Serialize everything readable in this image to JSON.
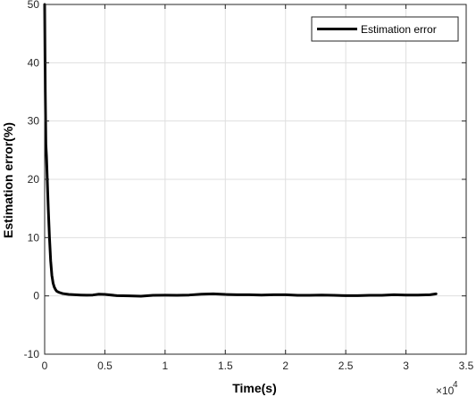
{
  "chart_data": {
    "type": "line",
    "xlabel": "Time(s)",
    "ylabel": "Estimation error(%)",
    "x_multiplier": "×10",
    "x_multiplier_exponent": "4",
    "xlim": [
      0,
      35000
    ],
    "ylim": [
      -10,
      50
    ],
    "xticks": [
      0,
      5000,
      10000,
      15000,
      20000,
      25000,
      30000,
      35000
    ],
    "xtick_labels": [
      "0",
      "0.5",
      "1",
      "1.5",
      "2",
      "2.5",
      "3",
      "3.5"
    ],
    "yticks": [
      -10,
      0,
      10,
      20,
      30,
      40,
      50
    ],
    "ytick_labels": [
      "-10",
      "0",
      "10",
      "20",
      "30",
      "40",
      "50"
    ],
    "grid": true,
    "legend_position": "top-right",
    "line_color": "#000000",
    "series": [
      {
        "name": "Estimation error",
        "x": [
          0,
          50,
          100,
          150,
          200,
          300,
          400,
          500,
          600,
          700,
          800,
          900,
          1000,
          1200,
          1500,
          2000,
          2500,
          3000,
          3500,
          4000,
          4500,
          5000,
          6000,
          7000,
          8000,
          9000,
          10000,
          11000,
          12000,
          13000,
          14000,
          15000,
          16000,
          17000,
          18000,
          19000,
          20000,
          21000,
          22000,
          23000,
          24000,
          25000,
          26000,
          27000,
          28000,
          29000,
          30000,
          31000,
          32000,
          32500
        ],
        "y": [
          50,
          35,
          26,
          24,
          21,
          15,
          10,
          6,
          3.5,
          2.2,
          1.5,
          1.1,
          0.8,
          0.6,
          0.4,
          0.25,
          0.2,
          0.15,
          0.12,
          0.15,
          0.3,
          0.25,
          0.05,
          0,
          -0.05,
          0.1,
          0.12,
          0.1,
          0.15,
          0.3,
          0.35,
          0.25,
          0.2,
          0.2,
          0.15,
          0.2,
          0.2,
          0.1,
          0.1,
          0.15,
          0.1,
          0.05,
          0.05,
          0.1,
          0.1,
          0.2,
          0.15,
          0.15,
          0.2,
          0.35
        ]
      }
    ]
  }
}
